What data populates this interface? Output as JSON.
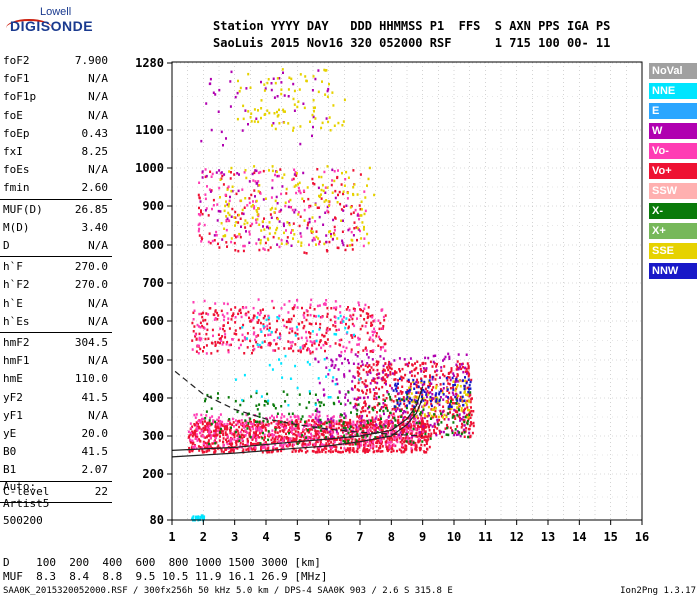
{
  "logo": {
    "line1": "Lowell",
    "line2": "DIGISONDE"
  },
  "header": {
    "row1": "Station YYYY DAY   DDD HHMMSS P1  FFS  S AXN PPS IGA PS",
    "row2": "SaoLuis 2015 Nov16 320 052000 RSF      1 715 100 00- 11"
  },
  "params": [
    {
      "label": "foF2",
      "value": "7.900"
    },
    {
      "label": "foF1",
      "value": "N/A"
    },
    {
      "label": "foF1p",
      "value": "N/A"
    },
    {
      "label": "foE",
      "value": "N/A"
    },
    {
      "label": "foEp",
      "value": "0.43"
    },
    {
      "label": "fxI",
      "value": "8.25"
    },
    {
      "label": "foEs",
      "value": "N/A"
    },
    {
      "label": "fmin",
      "value": "2.60"
    },
    {
      "label": "MUF(D)",
      "value": "26.85"
    },
    {
      "label": "M(D)",
      "value": "3.40"
    },
    {
      "label": "D",
      "value": "N/A"
    },
    {
      "label": "h`F",
      "value": "270.0"
    },
    {
      "label": "h`F2",
      "value": "270.0"
    },
    {
      "label": "h`E",
      "value": "N/A"
    },
    {
      "label": "h`Es",
      "value": "N/A"
    },
    {
      "label": "hmF2",
      "value": "304.5"
    },
    {
      "label": "hmF1",
      "value": "N/A"
    },
    {
      "label": "hmE",
      "value": "110.0"
    },
    {
      "label": "yF2",
      "value": "41.5"
    },
    {
      "label": "yF1",
      "value": "N/A"
    },
    {
      "label": "yE",
      "value": "20.0"
    },
    {
      "label": "B0",
      "value": "41.5"
    },
    {
      "label": "B1",
      "value": "2.07"
    },
    {
      "label": "C-level",
      "value": "22"
    }
  ],
  "auto": {
    "line1": "Auto:",
    "line2": "Artist5",
    "line3": "500200"
  },
  "dmuf": {
    "row1": "D    100  200  400  600  800 1000 1500 3000 [km]",
    "row2": "MUF  8.3  8.4  8.8  9.5 10.5 11.9 16.1 26.9 [MHz]"
  },
  "footer": {
    "left": "SAA0K_2015320052000.RSF / 300fx256h 50 kHz 5.0 km / DPS-4 SAA0K 903 / 2.6 S 315.8 E",
    "right": "Ion2Png 1.3.17"
  },
  "legend": [
    {
      "label": "NoVal",
      "color": "#a0a0a0"
    },
    {
      "label": "NNE",
      "color": "#00e5ff"
    },
    {
      "label": "E",
      "color": "#2aa6ff"
    },
    {
      "label": "W",
      "color": "#b000b0"
    },
    {
      "label": "Vo-",
      "color": "#ff3cb4"
    },
    {
      "label": "Vo+",
      "color": "#ee1133"
    },
    {
      "label": "SSW",
      "color": "#ffb0b0"
    },
    {
      "label": "X-",
      "color": "#0a7a0a"
    },
    {
      "label": "X+",
      "color": "#77b85a"
    },
    {
      "label": "SSE",
      "color": "#e6d200"
    },
    {
      "label": "NNW",
      "color": "#1818c8"
    }
  ],
  "chart_data": {
    "type": "scatter",
    "xlim": [
      1,
      16
    ],
    "ylim": [
      80,
      1280
    ],
    "x_ticks": [
      1,
      2,
      3,
      4,
      5,
      6,
      7,
      8,
      9,
      10,
      11,
      12,
      13,
      14,
      15,
      16
    ],
    "y_ticks": [
      80,
      200,
      300,
      400,
      500,
      600,
      700,
      800,
      900,
      1000,
      1100,
      1280
    ],
    "grid": true,
    "series": [
      {
        "name": "Vo+",
        "color": "#ee1133",
        "clusters": [
          {
            "x": [
              1.5,
              9.2
            ],
            "y": [
              260,
              345
            ],
            "density": 1200
          },
          {
            "x": [
              6.8,
              10.6
            ],
            "y": [
              300,
              500
            ],
            "density": 500
          },
          {
            "x": [
              1.6,
              7.8
            ],
            "y": [
              520,
              640
            ],
            "density": 300
          },
          {
            "x": [
              1.8,
              7.0
            ],
            "y": [
              780,
              1000
            ],
            "density": 140
          }
        ]
      },
      {
        "name": "Vo-",
        "color": "#ff3cb4",
        "clusters": [
          {
            "x": [
              1.5,
              9.0
            ],
            "y": [
              270,
              360
            ],
            "density": 400
          },
          {
            "x": [
              1.6,
              7.8
            ],
            "y": [
              520,
              660
            ],
            "density": 180
          },
          {
            "x": [
              1.8,
              7.2
            ],
            "y": [
              790,
              1000
            ],
            "density": 120
          }
        ]
      },
      {
        "name": "W",
        "color": "#b000b0",
        "clusters": [
          {
            "x": [
              5.5,
              10.5
            ],
            "y": [
              300,
              520
            ],
            "density": 250
          },
          {
            "x": [
              1.8,
              7.0
            ],
            "y": [
              800,
              1000
            ],
            "density": 90
          },
          {
            "x": [
              1.8,
              6.0
            ],
            "y": [
              1050,
              1270
            ],
            "density": 50
          }
        ]
      },
      {
        "name": "SSE",
        "color": "#e6d200",
        "clusters": [
          {
            "x": [
              2.5,
              7.5
            ],
            "y": [
              800,
              1010
            ],
            "density": 160
          },
          {
            "x": [
              3.0,
              6.5
            ],
            "y": [
              1100,
              1270
            ],
            "density": 90
          },
          {
            "x": [
              8.5,
              10.5
            ],
            "y": [
              350,
              450
            ],
            "density": 80
          }
        ]
      },
      {
        "name": "X-",
        "color": "#0a7a0a",
        "clusters": [
          {
            "x": [
              2.0,
              10.5
            ],
            "y": [
              280,
              420
            ],
            "density": 220
          }
        ]
      },
      {
        "name": "NNE",
        "color": "#00e5ff",
        "clusters": [
          {
            "x": [
              3.0,
              7.0
            ],
            "y": [
              380,
              620
            ],
            "density": 60
          },
          {
            "x": [
              1.5,
              2.0
            ],
            "y": [
              82,
              95
            ],
            "density": 25
          }
        ]
      },
      {
        "name": "NNW",
        "color": "#1818c8",
        "clusters": [
          {
            "x": [
              8.0,
              10.5
            ],
            "y": [
              380,
              460
            ],
            "density": 90
          }
        ]
      }
    ],
    "traces": [
      {
        "name": "virtual height (dashed)",
        "style": "dashed",
        "points": [
          [
            1.1,
            470
          ],
          [
            2,
            410
          ],
          [
            3,
            370
          ],
          [
            4,
            345
          ],
          [
            5,
            330
          ],
          [
            6,
            318
          ],
          [
            7,
            310
          ],
          [
            8,
            305
          ],
          [
            9,
            300
          ]
        ]
      },
      {
        "name": "true height lower",
        "style": "solid",
        "points": [
          [
            1,
            245
          ],
          [
            3,
            255
          ],
          [
            5,
            268
          ],
          [
            6,
            274
          ],
          [
            7,
            285
          ],
          [
            8,
            300
          ],
          [
            8.5,
            330
          ],
          [
            8.8,
            360
          ],
          [
            9,
            400
          ]
        ]
      },
      {
        "name": "true height upper",
        "style": "solid",
        "points": [
          [
            1,
            262
          ],
          [
            3,
            270
          ],
          [
            5,
            285
          ],
          [
            6,
            292
          ],
          [
            7,
            300
          ],
          [
            8,
            315
          ],
          [
            8.5,
            345
          ],
          [
            8.8,
            380
          ],
          [
            9,
            430
          ]
        ]
      }
    ]
  }
}
